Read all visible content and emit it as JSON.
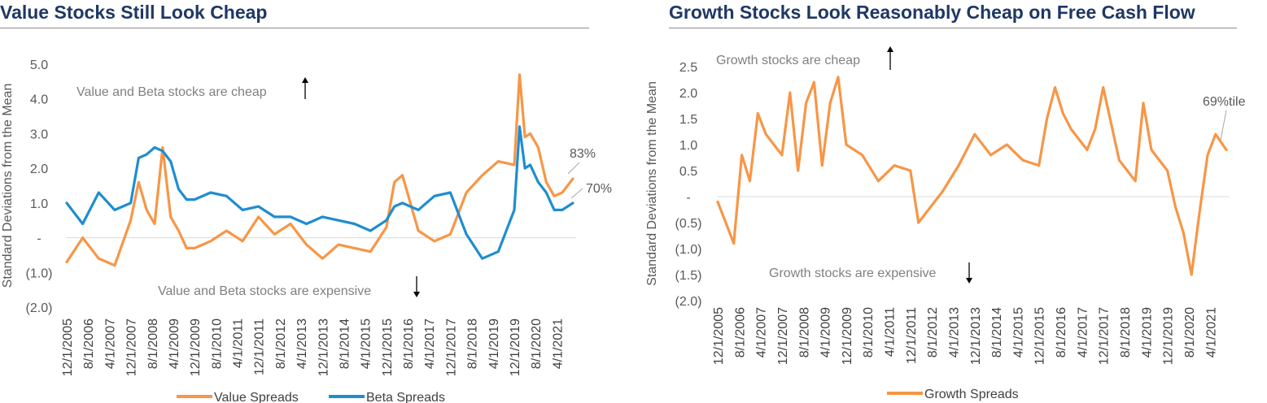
{
  "colors": {
    "title": "#1f3864",
    "value": "#f79646",
    "beta": "#1f8dd0",
    "growth": "#f79646",
    "text": "#595959",
    "annotation": "#808080"
  },
  "chart_data": [
    {
      "type": "line",
      "title": "Value Stocks Still Look Cheap",
      "ylabel": "Standard Deviations from the Mean",
      "ylim": [
        -2.0,
        5.0
      ],
      "ytick_labels": [
        "5.0",
        "4.0",
        "3.0",
        "2.0",
        "1.0",
        "-",
        "(1.0)",
        "(2.0)"
      ],
      "x_start": "12/1/2005",
      "x_end": "10/1/2021",
      "x_tick_labels": [
        "12/1/2005",
        "8/1/2006",
        "4/1/2007",
        "12/1/2007",
        "8/1/2008",
        "4/1/2009",
        "12/1/2009",
        "8/1/2010",
        "4/1/2011",
        "12/1/2011",
        "8/1/2012",
        "4/1/2013",
        "12/1/2013",
        "8/1/2014",
        "4/1/2015",
        "12/1/2015",
        "8/1/2016",
        "4/1/2017",
        "12/1/2017",
        "8/1/2018",
        "4/1/2019",
        "12/1/2019",
        "8/1/2020",
        "4/1/2021"
      ],
      "annotations": {
        "cheap": "Value and Beta stocks are cheap",
        "expensive": "Value and Beta stocks are expensive",
        "value_pct": "83%",
        "beta_pct": "70%"
      },
      "series": [
        {
          "name": "Value Spreads",
          "x": [
            "12/1/2005",
            "6/1/2006",
            "12/1/2006",
            "6/1/2007",
            "12/1/2007",
            "3/1/2008",
            "6/1/2008",
            "9/1/2008",
            "12/1/2008",
            "3/1/2009",
            "6/1/2009",
            "9/1/2009",
            "12/1/2009",
            "6/1/2010",
            "12/1/2010",
            "6/1/2011",
            "12/1/2011",
            "6/1/2012",
            "12/1/2012",
            "6/1/2013",
            "12/1/2013",
            "6/1/2014",
            "12/1/2014",
            "6/1/2015",
            "12/1/2015",
            "3/1/2016",
            "6/1/2016",
            "12/1/2016",
            "6/1/2017",
            "12/1/2017",
            "6/1/2018",
            "12/1/2018",
            "6/1/2019",
            "12/1/2019",
            "2/1/2020",
            "4/1/2020",
            "6/1/2020",
            "9/1/2020",
            "12/1/2020",
            "3/1/2021",
            "6/1/2021",
            "10/1/2021"
          ],
          "values": [
            -0.7,
            0.0,
            -0.6,
            -0.8,
            0.5,
            1.6,
            0.8,
            0.4,
            2.6,
            0.6,
            0.2,
            -0.3,
            -0.3,
            -0.1,
            0.2,
            -0.1,
            0.6,
            0.1,
            0.4,
            -0.2,
            -0.6,
            -0.2,
            -0.3,
            -0.4,
            0.3,
            1.6,
            1.8,
            0.2,
            -0.1,
            0.1,
            1.3,
            1.8,
            2.2,
            2.1,
            4.7,
            2.9,
            3.0,
            2.6,
            1.6,
            1.2,
            1.3,
            1.7
          ]
        },
        {
          "name": "Beta Spreads",
          "x": [
            "12/1/2005",
            "6/1/2006",
            "12/1/2006",
            "6/1/2007",
            "12/1/2007",
            "3/1/2008",
            "6/1/2008",
            "9/1/2008",
            "12/1/2008",
            "3/1/2009",
            "6/1/2009",
            "9/1/2009",
            "12/1/2009",
            "6/1/2010",
            "12/1/2010",
            "6/1/2011",
            "12/1/2011",
            "6/1/2012",
            "12/1/2012",
            "6/1/2013",
            "12/1/2013",
            "6/1/2014",
            "12/1/2014",
            "6/1/2015",
            "12/1/2015",
            "3/1/2016",
            "6/1/2016",
            "12/1/2016",
            "6/1/2017",
            "12/1/2017",
            "6/1/2018",
            "12/1/2018",
            "6/1/2019",
            "12/1/2019",
            "2/1/2020",
            "4/1/2020",
            "6/1/2020",
            "9/1/2020",
            "12/1/2020",
            "3/1/2021",
            "6/1/2021",
            "10/1/2021"
          ],
          "values": [
            1.0,
            0.4,
            1.3,
            0.8,
            1.0,
            2.3,
            2.4,
            2.6,
            2.5,
            2.2,
            1.4,
            1.1,
            1.1,
            1.3,
            1.2,
            0.8,
            0.9,
            0.6,
            0.6,
            0.4,
            0.6,
            0.5,
            0.4,
            0.2,
            0.5,
            0.9,
            1.0,
            0.8,
            1.2,
            1.3,
            0.1,
            -0.6,
            -0.4,
            0.8,
            3.2,
            2.0,
            2.1,
            1.6,
            1.3,
            0.8,
            0.8,
            1.0
          ]
        }
      ],
      "legend": [
        "Value Spreads",
        "Beta Spreads"
      ],
      "legend_position": "bottom"
    },
    {
      "type": "line",
      "title": "Growth Stocks Look Reasonably Cheap on Free Cash Flow",
      "ylabel": "Standard Deviations from the Mean",
      "ylim": [
        -2.0,
        2.5
      ],
      "ytick_labels": [
        "2.5",
        "2.0",
        "1.5",
        "1.0",
        "0.5",
        "-",
        "(0.5)",
        "(1.0)",
        "(1.5)",
        "(2.0)"
      ],
      "x_start": "12/1/2005",
      "x_end": "10/1/2021",
      "x_tick_labels": [
        "12/1/2005",
        "8/1/2006",
        "4/1/2007",
        "12/1/2007",
        "8/1/2008",
        "4/1/2009",
        "12/1/2009",
        "8/1/2010",
        "4/1/2011",
        "12/1/2011",
        "8/1/2012",
        "4/1/2013",
        "12/1/2013",
        "8/1/2014",
        "4/1/2015",
        "12/1/2015",
        "8/1/2016",
        "4/1/2017",
        "12/1/2017",
        "8/1/2018",
        "4/1/2019",
        "12/1/2019",
        "8/1/2020",
        "4/1/2021"
      ],
      "annotations": {
        "cheap": "Growth stocks are cheap",
        "expensive": "Growth stocks are expensive",
        "growth_pct": "69%tile"
      },
      "series": [
        {
          "name": "Growth Spreads",
          "x": [
            "12/1/2005",
            "6/1/2006",
            "9/1/2006",
            "12/1/2006",
            "3/1/2007",
            "6/1/2007",
            "12/1/2007",
            "3/1/2008",
            "6/1/2008",
            "9/1/2008",
            "12/1/2008",
            "3/1/2009",
            "6/1/2009",
            "9/1/2009",
            "12/1/2009",
            "6/1/2010",
            "12/1/2010",
            "6/1/2011",
            "12/1/2011",
            "3/1/2012",
            "6/1/2012",
            "12/1/2012",
            "6/1/2013",
            "12/1/2013",
            "6/1/2014",
            "12/1/2014",
            "6/1/2015",
            "12/1/2015",
            "3/1/2016",
            "6/1/2016",
            "9/1/2016",
            "12/1/2016",
            "6/1/2017",
            "9/1/2017",
            "12/1/2017",
            "6/1/2018",
            "9/1/2018",
            "12/1/2018",
            "3/1/2019",
            "6/1/2019",
            "12/1/2019",
            "3/1/2020",
            "6/1/2020",
            "9/1/2020",
            "12/1/2020",
            "3/1/2021",
            "6/1/2021",
            "10/1/2021"
          ],
          "values": [
            -0.1,
            -0.9,
            0.8,
            0.3,
            1.6,
            1.2,
            0.8,
            2.0,
            0.5,
            1.8,
            2.2,
            0.6,
            1.8,
            2.3,
            1.0,
            0.8,
            0.3,
            0.6,
            0.5,
            -0.5,
            -0.3,
            0.1,
            0.6,
            1.2,
            0.8,
            1.0,
            0.7,
            0.6,
            1.5,
            2.1,
            1.6,
            1.3,
            0.9,
            1.3,
            2.1,
            0.7,
            0.5,
            0.3,
            1.8,
            0.9,
            0.5,
            -0.2,
            -0.7,
            -1.5,
            -0.3,
            0.8,
            1.2,
            0.9
          ]
        }
      ],
      "legend": [
        "Growth Spreads"
      ],
      "legend_position": "bottom"
    }
  ]
}
